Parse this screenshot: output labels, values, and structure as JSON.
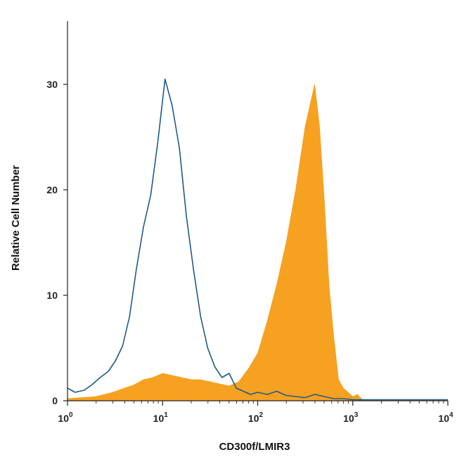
{
  "chart_data": {
    "type": "histogram",
    "xlabel": "CD300f/LMIR3",
    "ylabel": "Relative Cell Number",
    "xscale": "log",
    "xlim": [
      1,
      10000
    ],
    "ylim": [
      0,
      35
    ],
    "x_ticks": [
      {
        "value": 1,
        "base": "10",
        "exp": "0"
      },
      {
        "value": 10,
        "base": "10",
        "exp": "1"
      },
      {
        "value": 100,
        "base": "10",
        "exp": "2"
      },
      {
        "value": 1000,
        "base": "10",
        "exp": "3"
      },
      {
        "value": 10000,
        "base": "10",
        "exp": "4"
      }
    ],
    "y_ticks": [
      {
        "value": 0,
        "label": "0"
      },
      {
        "value": 10,
        "label": "10"
      },
      {
        "value": 20,
        "label": "20"
      },
      {
        "value": 30,
        "label": "30"
      }
    ],
    "grid": false,
    "series": [
      {
        "style": "outline",
        "color": "#1f5a8a",
        "x": [
          1.0,
          1.2,
          1.5,
          1.8,
          2.2,
          2.7,
          3.2,
          3.8,
          4.5,
          5.3,
          6.3,
          7.5,
          8.9,
          10.6,
          12.6,
          15.0,
          17.8,
          21.1,
          25.1,
          29.8,
          35.5,
          42.2,
          50.1,
          59.6,
          70.8,
          84.1,
          100.0,
          125.9,
          158.5,
          199.5,
          251.2,
          316.2,
          398.1,
          501.2,
          631.0,
          794.3,
          1000.0,
          2000.0,
          5000.0,
          10000.0
        ],
        "y": [
          1.2,
          0.8,
          1.0,
          1.5,
          2.2,
          2.8,
          3.8,
          5.2,
          8.0,
          12.5,
          16.5,
          19.5,
          24.5,
          30.5,
          28.0,
          24.0,
          17.5,
          12.5,
          8.0,
          5.0,
          3.2,
          2.2,
          2.6,
          1.2,
          0.9,
          0.6,
          0.8,
          0.6,
          0.9,
          0.5,
          0.4,
          0.3,
          0.6,
          0.4,
          0.2,
          0.2,
          0.1,
          0.1,
          0.1,
          0.1
        ]
      },
      {
        "style": "filled",
        "color": "#f7a120",
        "x": [
          1.0,
          2.0,
          3.0,
          4.0,
          5.0,
          6.3,
          7.9,
          10.0,
          12.6,
          15.8,
          20.0,
          25.1,
          31.6,
          39.8,
          50.1,
          63.1,
          79.4,
          100.0,
          125.9,
          158.5,
          199.5,
          251.2,
          316.2,
          398.1,
          446.7,
          501.2,
          562.3,
          631.0,
          708.0,
          794.3,
          891.3,
          1000.0,
          1122.0,
          1259.0,
          10000.0
        ],
        "y": [
          0.2,
          0.4,
          0.8,
          1.2,
          1.5,
          2.0,
          2.2,
          2.6,
          2.4,
          2.2,
          2.0,
          2.0,
          1.8,
          1.6,
          1.4,
          1.8,
          3.0,
          4.5,
          7.5,
          11.0,
          15.0,
          20.0,
          26.0,
          30.0,
          26.0,
          19.0,
          11.0,
          6.0,
          2.0,
          1.2,
          0.8,
          0.4,
          0.6,
          0.1,
          0.1
        ]
      }
    ]
  }
}
